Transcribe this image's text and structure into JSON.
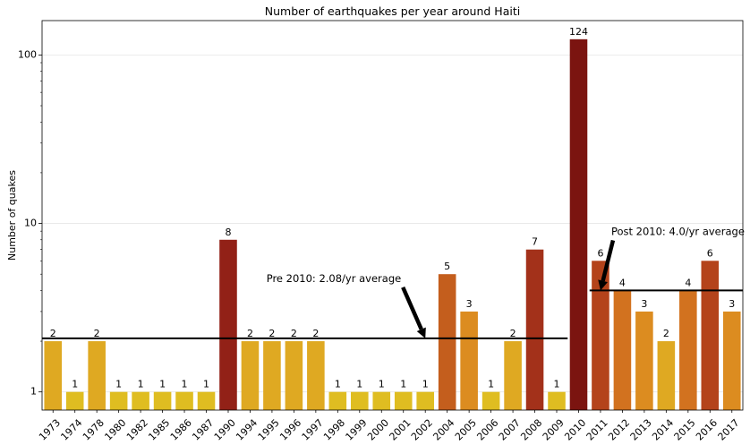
{
  "chart_data": {
    "type": "bar",
    "title": "Number of earthquakes per year around Haiti",
    "ylabel": "Number of quakes",
    "xlabel": "",
    "yscale": "log",
    "ylim": [
      0.78,
      160
    ],
    "yticks": [
      1,
      10,
      100
    ],
    "ytick_labels": [
      "1",
      "10",
      "100"
    ],
    "grid": "horizontal major lines",
    "categories": [
      "1973",
      "1974",
      "1978",
      "1980",
      "1982",
      "1985",
      "1986",
      "1987",
      "1990",
      "1994",
      "1995",
      "1996",
      "1997",
      "1998",
      "1999",
      "2000",
      "2001",
      "2002",
      "2004",
      "2005",
      "2006",
      "2007",
      "2008",
      "2009",
      "2010",
      "2011",
      "2012",
      "2013",
      "2014",
      "2015",
      "2016",
      "2017"
    ],
    "values": [
      2,
      1,
      2,
      1,
      1,
      1,
      1,
      1,
      8,
      2,
      2,
      2,
      2,
      1,
      1,
      1,
      1,
      1,
      5,
      3,
      1,
      2,
      7,
      1,
      124,
      6,
      4,
      3,
      2,
      4,
      6,
      3
    ],
    "colors": [
      "#dfa922",
      "#dfbd21",
      "#dfa922",
      "#dfbd21",
      "#dfbd21",
      "#dfbd21",
      "#dfbd21",
      "#dfbd21",
      "#922117",
      "#dfa922",
      "#dfa922",
      "#dfa922",
      "#dfa922",
      "#dfbd21",
      "#dfbd21",
      "#dfbd21",
      "#dfbd21",
      "#dfbd21",
      "#c45e1d",
      "#dc8c20",
      "#dfbd21",
      "#dfa922",
      "#a3311a",
      "#dfbd21",
      "#7b1410",
      "#b4431b",
      "#d2721f",
      "#dc8c20",
      "#dfa922",
      "#d2721f",
      "#b4431b",
      "#dc8c20"
    ],
    "reference_lines": [
      {
        "value": 2.08,
        "from_category": "1973",
        "to_category": "2009"
      },
      {
        "value": 4.0,
        "from_category": "2011",
        "to_category": "2017"
      }
    ],
    "annotations": [
      {
        "text": "Pre 2010: 2.08/yr average",
        "points_to_category": "2002",
        "points_to_value": 2.08
      },
      {
        "text": "Post 2010: 4.0/yr average",
        "points_to_category": "2011",
        "points_to_value": 4.0
      }
    ]
  }
}
